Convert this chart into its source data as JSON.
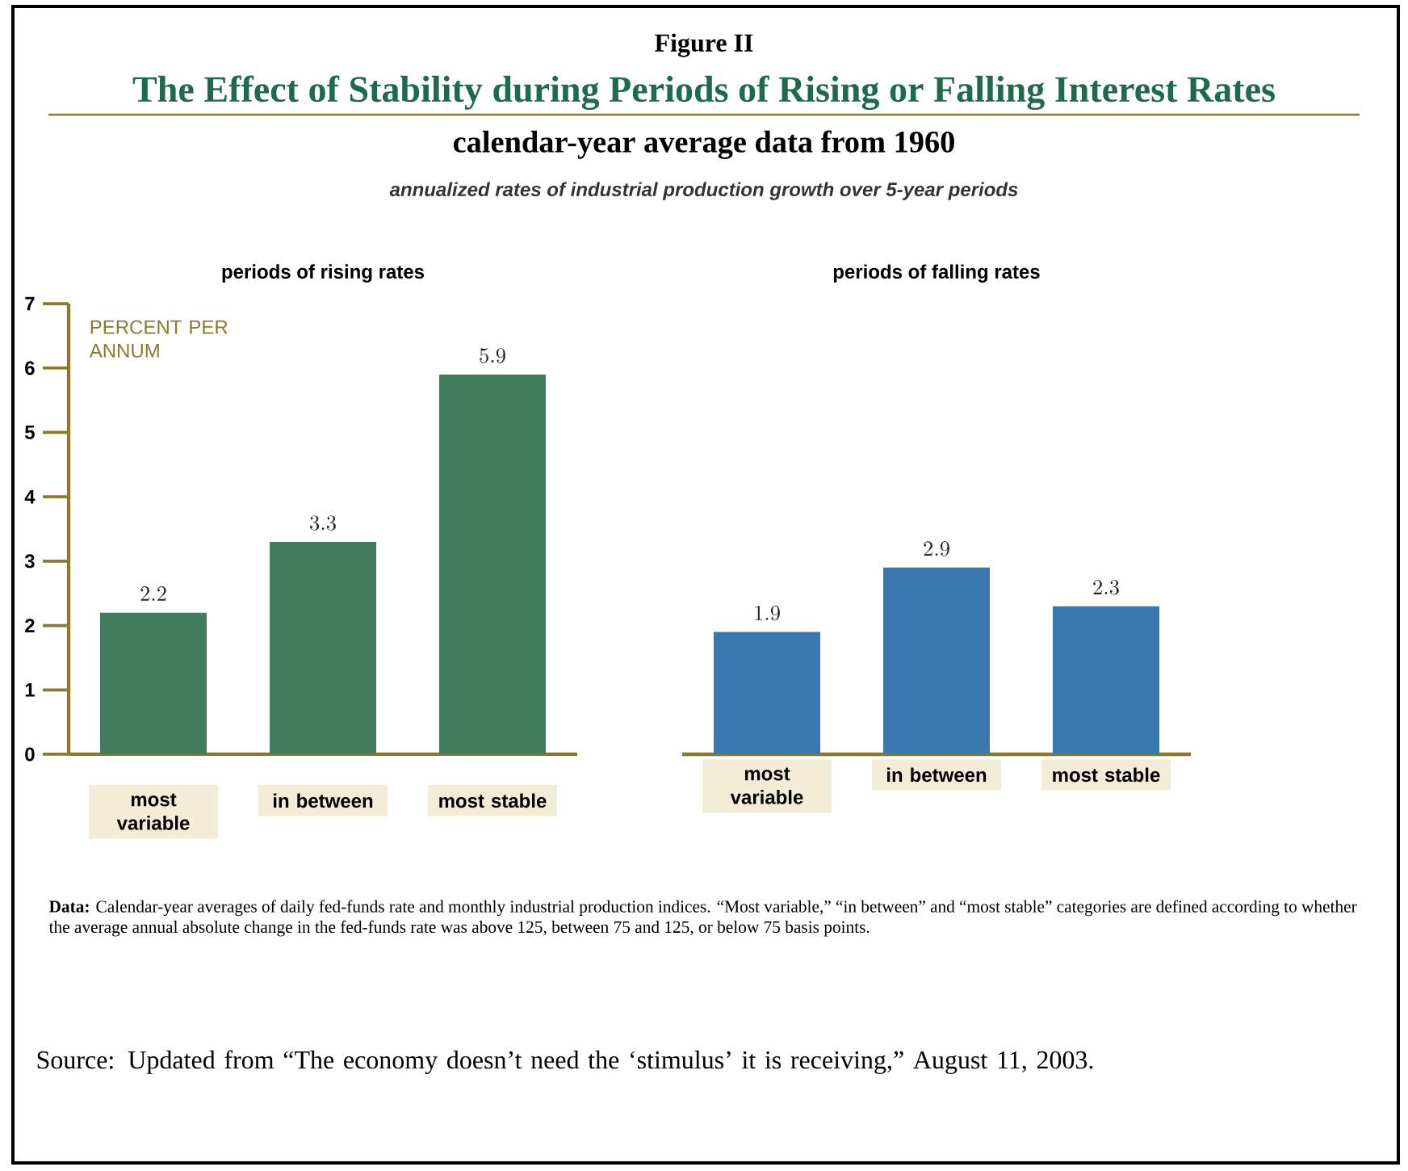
{
  "chart_data": [
    {
      "type": "bar",
      "title": "periods of rising rates",
      "ylabel": "PERCENT PER ANNUM",
      "annotations": [
        "Figure II",
        "The Effect of Stability during Periods of Rising or Falling Interest Rates",
        "calendar-year average data from 1960",
        "annualized rates of industrial production growth over 5-year periods"
      ],
      "categories": [
        "most variable",
        "in between",
        "most stable"
      ],
      "values": [
        2.2,
        3.3,
        5.9
      ],
      "color": "#3f7d5c",
      "ylim": [
        0,
        7
      ],
      "yticks": [
        0,
        1,
        2,
        3,
        4,
        5,
        6,
        7
      ],
      "data_labels": true
    },
    {
      "type": "bar",
      "title": "periods of falling rates",
      "annotations": [
        "**Data:** Calendar-year averages of daily fed-funds rate and monthly industrial production indices. “Most variable,” “in between” and “most stable” categories are defined according to whether the average annual absolute change in the fed-funds rate was above 125, between 75 and 125, or below 75 basis points.",
        "Source: Updated from “The economy doesn’t need the ‘stimulus’ it is receiving,” August 11, 2003."
      ],
      "categories": [
        "most variable",
        "in between",
        "most stable"
      ],
      "values": [
        1.9,
        2.9,
        2.3
      ],
      "color": "#3a78b0",
      "ylim": [
        0,
        7
      ],
      "yticks": [
        0,
        1,
        2,
        3,
        4,
        5,
        6,
        7
      ],
      "data_labels": true,
      "tick_labels": "x"
    }
  ]
}
